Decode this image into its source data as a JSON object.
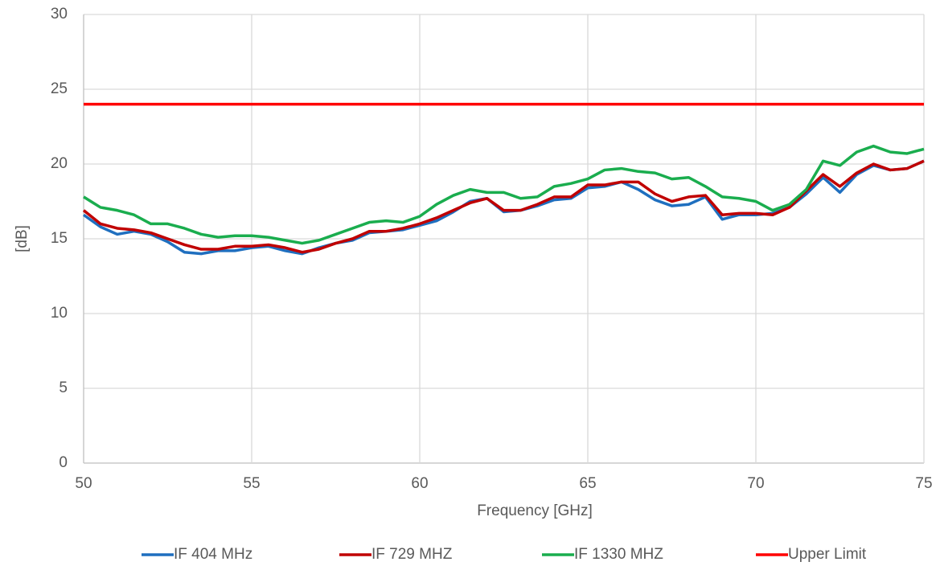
{
  "chart_data": {
    "type": "line",
    "xlabel": "Frequency [GHz]",
    "ylabel": "[dB]",
    "x": [
      50,
      50.5,
      51,
      51.5,
      52,
      52.5,
      53,
      53.5,
      54,
      54.5,
      55,
      55.5,
      56,
      56.5,
      57,
      57.5,
      58,
      58.5,
      59,
      59.5,
      60,
      60.5,
      61,
      61.5,
      62,
      62.5,
      63,
      63.5,
      64,
      64.5,
      65,
      65.5,
      66,
      66.5,
      67,
      67.5,
      68,
      68.5,
      69,
      69.5,
      70,
      70.5,
      71,
      71.5,
      72,
      72.5,
      73,
      73.5,
      74,
      74.5,
      75
    ],
    "series": [
      {
        "name": "IF 404 MHz",
        "color": "#1f6fbf",
        "values": [
          16.6,
          15.8,
          15.3,
          15.5,
          15.3,
          14.8,
          14.1,
          14.0,
          14.2,
          14.2,
          14.4,
          14.5,
          14.2,
          14.0,
          14.4,
          14.7,
          14.9,
          15.4,
          15.5,
          15.6,
          15.9,
          16.2,
          16.8,
          17.5,
          17.7,
          16.8,
          16.9,
          17.2,
          17.6,
          17.7,
          18.4,
          18.5,
          18.8,
          18.3,
          17.6,
          17.2,
          17.3,
          17.8,
          16.3,
          16.6,
          16.6,
          16.7,
          17.1,
          18.0,
          19.1,
          18.1,
          19.3,
          19.9,
          19.6,
          19.7,
          20.2
        ]
      },
      {
        "name": "IF 729 MHZ",
        "color": "#c00000",
        "values": [
          16.9,
          16.0,
          15.7,
          15.6,
          15.4,
          15.0,
          14.6,
          14.3,
          14.3,
          14.5,
          14.5,
          14.6,
          14.4,
          14.1,
          14.3,
          14.7,
          15.0,
          15.5,
          15.5,
          15.7,
          16.0,
          16.4,
          16.9,
          17.4,
          17.7,
          16.9,
          16.9,
          17.3,
          17.8,
          17.8,
          18.6,
          18.6,
          18.8,
          18.8,
          18.0,
          17.5,
          17.8,
          17.9,
          16.6,
          16.7,
          16.7,
          16.6,
          17.1,
          18.2,
          19.3,
          18.5,
          19.4,
          20.0,
          19.6,
          19.7,
          20.2
        ]
      },
      {
        "name": "IF 1330 MHZ",
        "color": "#1aad4e",
        "values": [
          17.8,
          17.1,
          16.9,
          16.6,
          16.0,
          16.0,
          15.7,
          15.3,
          15.1,
          15.2,
          15.2,
          15.1,
          14.9,
          14.7,
          14.9,
          15.3,
          15.7,
          16.1,
          16.2,
          16.1,
          16.5,
          17.3,
          17.9,
          18.3,
          18.1,
          18.1,
          17.7,
          17.8,
          18.5,
          18.7,
          19.0,
          19.6,
          19.7,
          19.5,
          19.4,
          19.0,
          19.1,
          18.5,
          17.8,
          17.7,
          17.5,
          16.9,
          17.3,
          18.3,
          20.2,
          19.9,
          20.8,
          21.2,
          20.8,
          20.7,
          21.0
        ]
      },
      {
        "name": "Upper Limit",
        "color": "#ff0000",
        "x": [
          50,
          75
        ],
        "values": [
          24,
          24
        ]
      }
    ],
    "xlim": [
      50,
      75
    ],
    "xticks": [
      50,
      55,
      60,
      65,
      70,
      75
    ],
    "ylim": [
      0,
      30
    ],
    "yticks": [
      0,
      5,
      10,
      15,
      20,
      25,
      30
    ],
    "grid": true,
    "legend": "bottom"
  }
}
